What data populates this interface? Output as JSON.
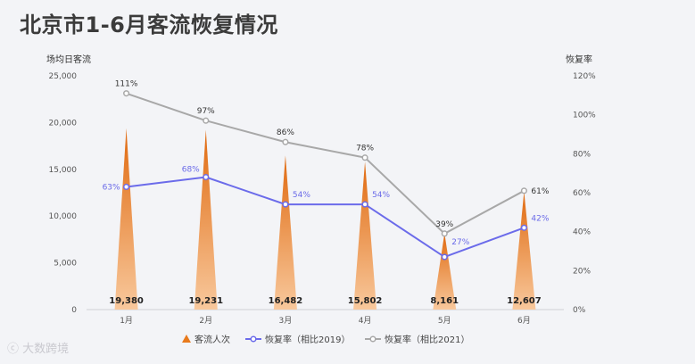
{
  "title": "北京市1-6月客流恢复情况",
  "watermark": "大数跨境",
  "chart_data": {
    "type": "bar",
    "categories": [
      "1月",
      "2月",
      "3月",
      "4月",
      "5月",
      "6月"
    ],
    "y_left": {
      "label": "场均日客流",
      "min": 0,
      "max": 25000,
      "ticks": [
        "0",
        "5,000",
        "10,000",
        "15,000",
        "20,000",
        "25,000"
      ]
    },
    "y_right": {
      "label": "恢复率",
      "min": 0,
      "max": 120,
      "ticks": [
        "0%",
        "20%",
        "40%",
        "60%",
        "80%",
        "100%",
        "120%"
      ]
    },
    "series": [
      {
        "name": "客流人次",
        "type": "bar",
        "axis": "left",
        "values": [
          19380,
          19231,
          16482,
          15802,
          8161,
          12607
        ],
        "labels": [
          "19,380",
          "19,231",
          "16,482",
          "15,802",
          "8,161",
          "12,607"
        ],
        "color": "#e87a1c"
      },
      {
        "name": "恢复率（相比2019）",
        "type": "line",
        "axis": "right",
        "values": [
          63,
          68,
          54,
          54,
          27,
          42
        ],
        "labels": [
          "63%",
          "68%",
          "54%",
          "54%",
          "27%",
          "42%"
        ],
        "color": "#6b6bea"
      },
      {
        "name": "恢复率（相比2021）",
        "type": "line",
        "axis": "right",
        "values": [
          111,
          97,
          86,
          78,
          39,
          61
        ],
        "labels": [
          "111%",
          "97%",
          "86%",
          "78%",
          "39%",
          "61%"
        ],
        "color": "#a8a8a8"
      }
    ],
    "grid": false,
    "legend": "bottom"
  }
}
